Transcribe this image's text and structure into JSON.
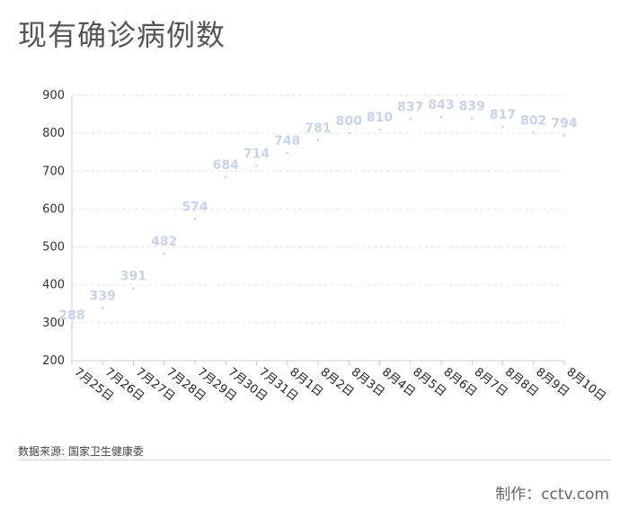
{
  "header": {
    "title": "现有确诊病例数"
  },
  "footer": {
    "source": "数据来源: 国家卫生健康委",
    "credit_label": "制作：",
    "credit_value": "cctv.com"
  },
  "chart_data": {
    "type": "scatter",
    "title": "现有确诊病例数",
    "x": [
      "7月25日",
      "7月26日",
      "7月27日",
      "7月28日",
      "7月29日",
      "7月30日",
      "7月31日",
      "8月1日",
      "8月2日",
      "8月3日",
      "8月4日",
      "8月5日",
      "8月6日",
      "8月7日",
      "8月8日",
      "8月9日",
      "8月10日"
    ],
    "values": [
      288,
      339,
      391,
      482,
      574,
      684,
      714,
      748,
      781,
      800,
      810,
      837,
      843,
      839,
      817,
      802,
      794
    ],
    "data_labels": [
      "288",
      "339",
      "391",
      "482",
      "574",
      "684",
      "714",
      "748",
      "781",
      "800",
      "810",
      "837",
      "843",
      "839",
      "817",
      "802",
      "794"
    ],
    "yticks": [
      "200",
      "300",
      "400",
      "500",
      "600",
      "700",
      "800",
      "900"
    ],
    "ylim": [
      200,
      900
    ],
    "xlabel": "",
    "ylabel": "",
    "grid": true,
    "label_color": "#c9d3ee",
    "point_color": "#c8c8c8",
    "grid_color": "#e6e6e6",
    "axis_color": "#cccccc"
  }
}
